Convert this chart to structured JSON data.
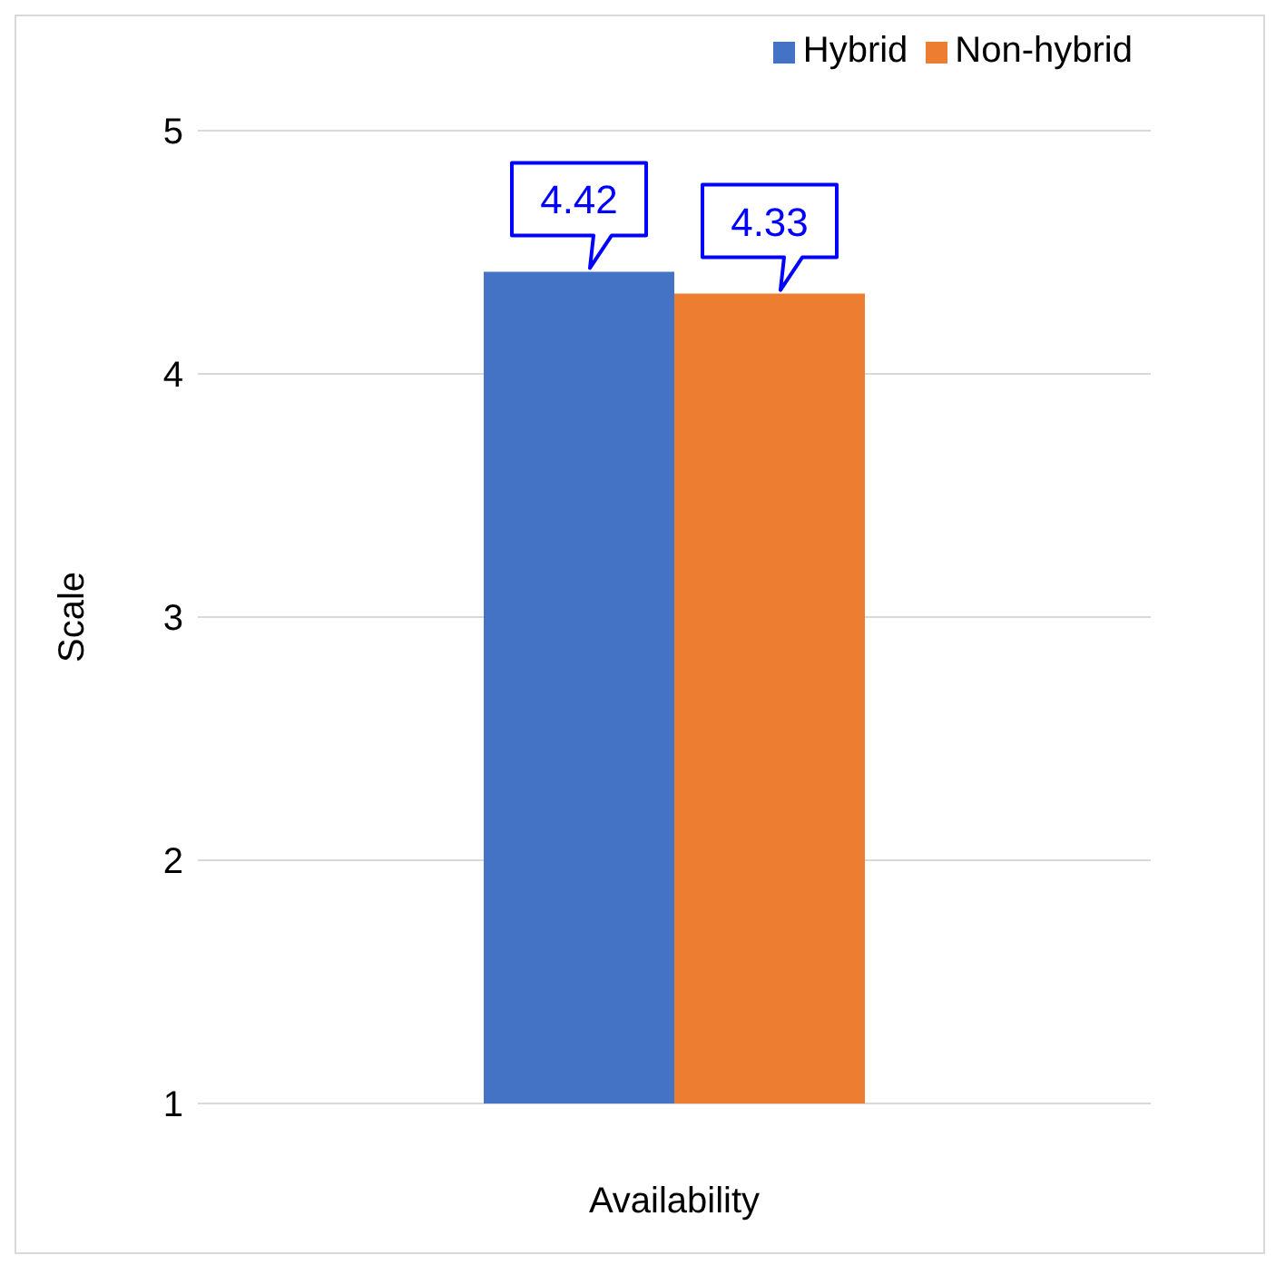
{
  "chart_data": {
    "type": "bar",
    "ylabel": "Scale",
    "categories": [
      "Availability"
    ],
    "series": [
      {
        "name": "Hybrid",
        "color": "#4472c4",
        "values": [
          4.42
        ]
      },
      {
        "name": "Non-hybrid",
        "color": "#ed7d31",
        "values": [
          4.33
        ]
      }
    ],
    "ylim": [
      1,
      5
    ],
    "yticks": [
      1,
      2,
      3,
      4,
      5
    ],
    "grid": "y",
    "legend": "top right",
    "data_labels": true
  }
}
